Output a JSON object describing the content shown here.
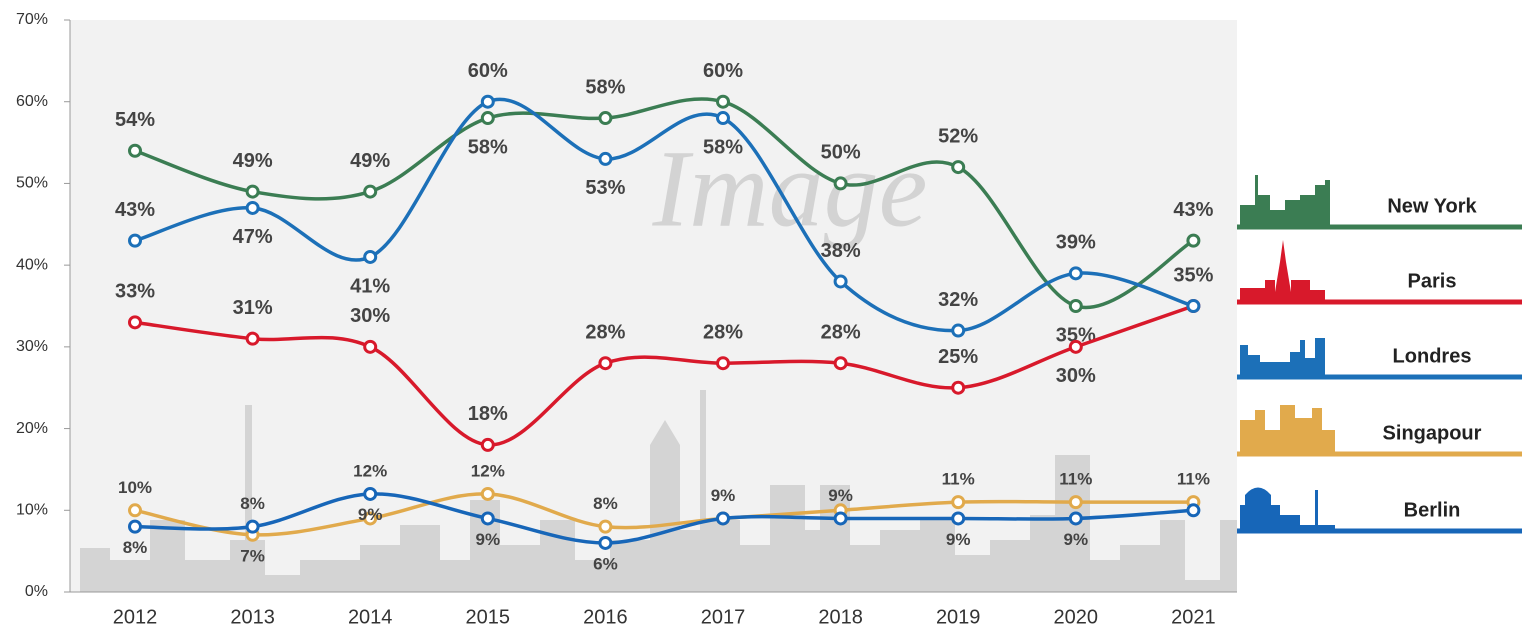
{
  "chart_data": {
    "type": "line",
    "watermark": "Image",
    "categories": [
      "2012",
      "2013",
      "2014",
      "2015",
      "2016",
      "2017",
      "2018",
      "2019",
      "2020",
      "2021"
    ],
    "series": [
      {
        "name": "New York",
        "color": "#3b7d53",
        "values": [
          54,
          49,
          49,
          58,
          58,
          60,
          50,
          52,
          35,
          43
        ],
        "value_labels": [
          "54%",
          "49%",
          "49%",
          "58%",
          "58%",
          "60%",
          "50%",
          "52%",
          "35%",
          "43%"
        ]
      },
      {
        "name": "Paris",
        "color": "#d8192b",
        "values": [
          33,
          31,
          30,
          18,
          28,
          28,
          28,
          25,
          30,
          35
        ],
        "value_labels": [
          "33%",
          "31%",
          "30%",
          "18%",
          "28%",
          "28%",
          "28%",
          "25%",
          "30%",
          "35%"
        ]
      },
      {
        "name": "Londres",
        "color": "#1c70b8",
        "values": [
          43,
          47,
          41,
          60,
          53,
          58,
          38,
          32,
          39,
          35
        ],
        "value_labels": [
          "43%",
          "47%",
          "41%",
          "60%",
          "53%",
          "58%",
          "38%",
          "32%",
          "39%",
          null
        ]
      },
      {
        "name": "Singapour",
        "color": "#e1aa4c",
        "values": [
          10,
          7,
          9,
          12,
          8,
          9,
          10,
          11,
          11,
          11
        ],
        "value_labels": [
          "10%",
          "7%",
          "9%",
          "12%",
          "8%",
          "9%",
          null,
          "11%",
          "11%",
          "11%"
        ]
      },
      {
        "name": "Berlin",
        "color": "#1766b8",
        "values": [
          8,
          8,
          12,
          9,
          6,
          9,
          9,
          9,
          9,
          10
        ],
        "value_labels": [
          "8%",
          "8%",
          "12%",
          "9%",
          "6%",
          null,
          "9%",
          "9%",
          "9%",
          null
        ]
      }
    ],
    "ylim": [
      0,
      70
    ],
    "yticks": [
      {
        "value": 0,
        "label": "0%"
      },
      {
        "value": 10,
        "label": "10%"
      },
      {
        "value": 20,
        "label": "20%"
      },
      {
        "value": 30,
        "label": "30%"
      },
      {
        "value": 40,
        "label": "40%"
      },
      {
        "value": 50,
        "label": "50%"
      },
      {
        "value": 60,
        "label": "60%"
      },
      {
        "value": 70,
        "label": "70%"
      }
    ],
    "grid": false,
    "legend": "right"
  }
}
